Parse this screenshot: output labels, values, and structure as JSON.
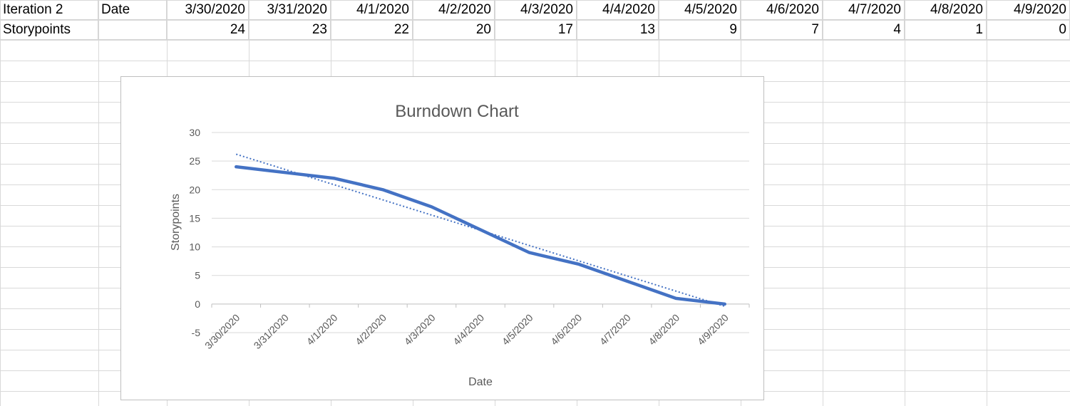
{
  "sheet": {
    "header_row": [
      "Iteration 2",
      "Date",
      "3/30/2020",
      "3/31/2020",
      "4/1/2020",
      "4/2/2020",
      "4/3/2020",
      "4/4/2020",
      "4/5/2020",
      "4/6/2020",
      "4/7/2020",
      "4/8/2020",
      "4/9/2020"
    ],
    "data_row": [
      "Storypoints",
      "",
      "24",
      "23",
      "22",
      "20",
      "17",
      "13",
      "9",
      "7",
      "4",
      "1",
      "0"
    ]
  },
  "chart_data": {
    "type": "line",
    "title": "Burndown Chart",
    "xlabel": "Date",
    "ylabel": "Storypoints",
    "categories": [
      "3/30/2020",
      "3/31/2020",
      "4/1/2020",
      "4/2/2020",
      "4/3/2020",
      "4/4/2020",
      "4/5/2020",
      "4/6/2020",
      "4/7/2020",
      "4/8/2020",
      "4/9/2020"
    ],
    "series": [
      {
        "values": [
          24,
          23,
          22,
          20,
          17,
          13,
          9,
          7,
          4,
          1,
          0
        ],
        "color": "#4472c4",
        "style": "solid"
      }
    ],
    "trendline": {
      "type": "linear",
      "style": "dotted",
      "color": "#4472c4",
      "start": 26.2,
      "end": -0.4
    },
    "ylim": [
      -5,
      30
    ],
    "yticks": [
      30,
      25,
      20,
      15,
      10,
      5,
      0,
      -5
    ],
    "grid": true,
    "legend": "none"
  }
}
